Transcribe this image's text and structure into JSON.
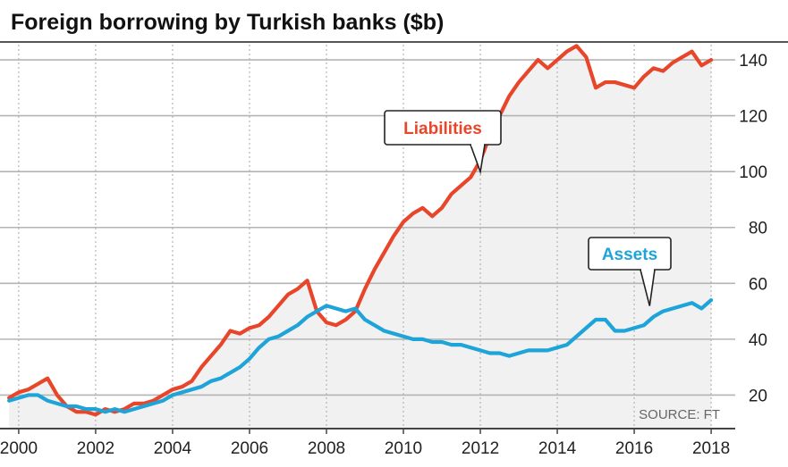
{
  "chart_data": {
    "type": "line",
    "title": "Foreign borrowing by Turkish banks ($b)",
    "source": "SOURCE: FT",
    "xlim": [
      1999.7,
      2018.3
    ],
    "ylim": [
      8,
      148
    ],
    "yticks": [
      20,
      40,
      60,
      80,
      100,
      120,
      140
    ],
    "ytick_labels": [
      "20",
      "40",
      "60",
      "80",
      "100",
      "120",
      "140"
    ],
    "xticks": [
      2000,
      2002,
      2004,
      2006,
      2008,
      2010,
      2012,
      2014,
      2016,
      2018
    ],
    "xtick_labels": [
      "2000",
      "2002",
      "2004",
      "2006",
      "2008",
      "2010",
      "2012",
      "2014",
      "2016",
      "2018"
    ],
    "grid": true,
    "colors": {
      "liabilities": "#e8462a",
      "assets": "#1ea4d8",
      "grid": "#b4b4b4",
      "shade": "#f1f1f1"
    },
    "series": [
      {
        "name": "Liabilities",
        "x": [
          1999.75,
          2000.0,
          2000.25,
          2000.5,
          2000.75,
          2001.0,
          2001.25,
          2001.5,
          2001.75,
          2002.0,
          2002.25,
          2002.5,
          2002.75,
          2003.0,
          2003.25,
          2003.5,
          2003.75,
          2004.0,
          2004.25,
          2004.5,
          2004.75,
          2005.0,
          2005.25,
          2005.5,
          2005.75,
          2006.0,
          2006.25,
          2006.5,
          2006.75,
          2007.0,
          2007.25,
          2007.5,
          2007.75,
          2008.0,
          2008.25,
          2008.5,
          2008.75,
          2009.0,
          2009.25,
          2009.5,
          2009.75,
          2010.0,
          2010.25,
          2010.5,
          2010.75,
          2011.0,
          2011.25,
          2011.5,
          2011.75,
          2012.0,
          2012.25,
          2012.5,
          2012.75,
          2013.0,
          2013.25,
          2013.5,
          2013.75,
          2014.0,
          2014.25,
          2014.5,
          2014.75,
          2015.0,
          2015.25,
          2015.5,
          2015.75,
          2016.0,
          2016.25,
          2016.5,
          2016.75,
          2017.0,
          2017.25,
          2017.5,
          2017.75,
          2018.0
        ],
        "values": [
          19,
          21,
          22,
          24,
          26,
          20,
          16,
          14,
          14,
          13,
          15,
          14,
          15,
          17,
          17,
          18,
          20,
          22,
          23,
          25,
          30,
          34,
          38,
          43,
          42,
          44,
          45,
          48,
          52,
          56,
          58,
          61,
          50,
          46,
          45,
          47,
          50,
          58,
          65,
          71,
          77,
          82,
          85,
          87,
          84,
          87,
          92,
          95,
          98,
          104,
          113,
          120,
          127,
          132,
          136,
          140,
          137,
          140,
          143,
          145,
          141,
          130,
          132,
          132,
          131,
          130,
          134,
          137,
          136,
          139,
          141,
          143,
          138,
          140
        ]
      },
      {
        "name": "Assets",
        "x": [
          1999.75,
          2000.0,
          2000.25,
          2000.5,
          2000.75,
          2001.0,
          2001.25,
          2001.5,
          2001.75,
          2002.0,
          2002.25,
          2002.5,
          2002.75,
          2003.0,
          2003.25,
          2003.5,
          2003.75,
          2004.0,
          2004.25,
          2004.5,
          2004.75,
          2005.0,
          2005.25,
          2005.5,
          2005.75,
          2006.0,
          2006.25,
          2006.5,
          2006.75,
          2007.0,
          2007.25,
          2007.5,
          2007.75,
          2008.0,
          2008.25,
          2008.5,
          2008.75,
          2009.0,
          2009.25,
          2009.5,
          2009.75,
          2010.0,
          2010.25,
          2010.5,
          2010.75,
          2011.0,
          2011.25,
          2011.5,
          2011.75,
          2012.0,
          2012.25,
          2012.5,
          2012.75,
          2013.0,
          2013.25,
          2013.5,
          2013.75,
          2014.0,
          2014.25,
          2014.5,
          2014.75,
          2015.0,
          2015.25,
          2015.5,
          2015.75,
          2016.0,
          2016.25,
          2016.5,
          2016.75,
          2017.0,
          2017.25,
          2017.5,
          2017.75,
          2018.0
        ],
        "values": [
          18,
          19,
          20,
          20,
          18,
          17,
          16,
          16,
          15,
          15,
          14,
          15,
          14,
          15,
          16,
          17,
          18,
          20,
          21,
          22,
          23,
          25,
          26,
          28,
          30,
          33,
          37,
          40,
          41,
          43,
          45,
          48,
          50,
          52,
          51,
          50,
          51,
          47,
          45,
          43,
          42,
          41,
          40,
          40,
          39,
          39,
          38,
          38,
          37,
          36,
          35,
          35,
          34,
          35,
          36,
          36,
          36,
          37,
          38,
          41,
          44,
          47,
          47,
          43,
          43,
          44,
          45,
          48,
          50,
          51,
          52,
          53,
          51,
          54
        ]
      }
    ],
    "annotations": [
      {
        "text": "Liabilities",
        "series": "Liabilities",
        "x": 2012.0,
        "y": 98
      },
      {
        "text": "Assets",
        "series": "Assets",
        "x": 2016.4,
        "y": 50
      }
    ]
  }
}
